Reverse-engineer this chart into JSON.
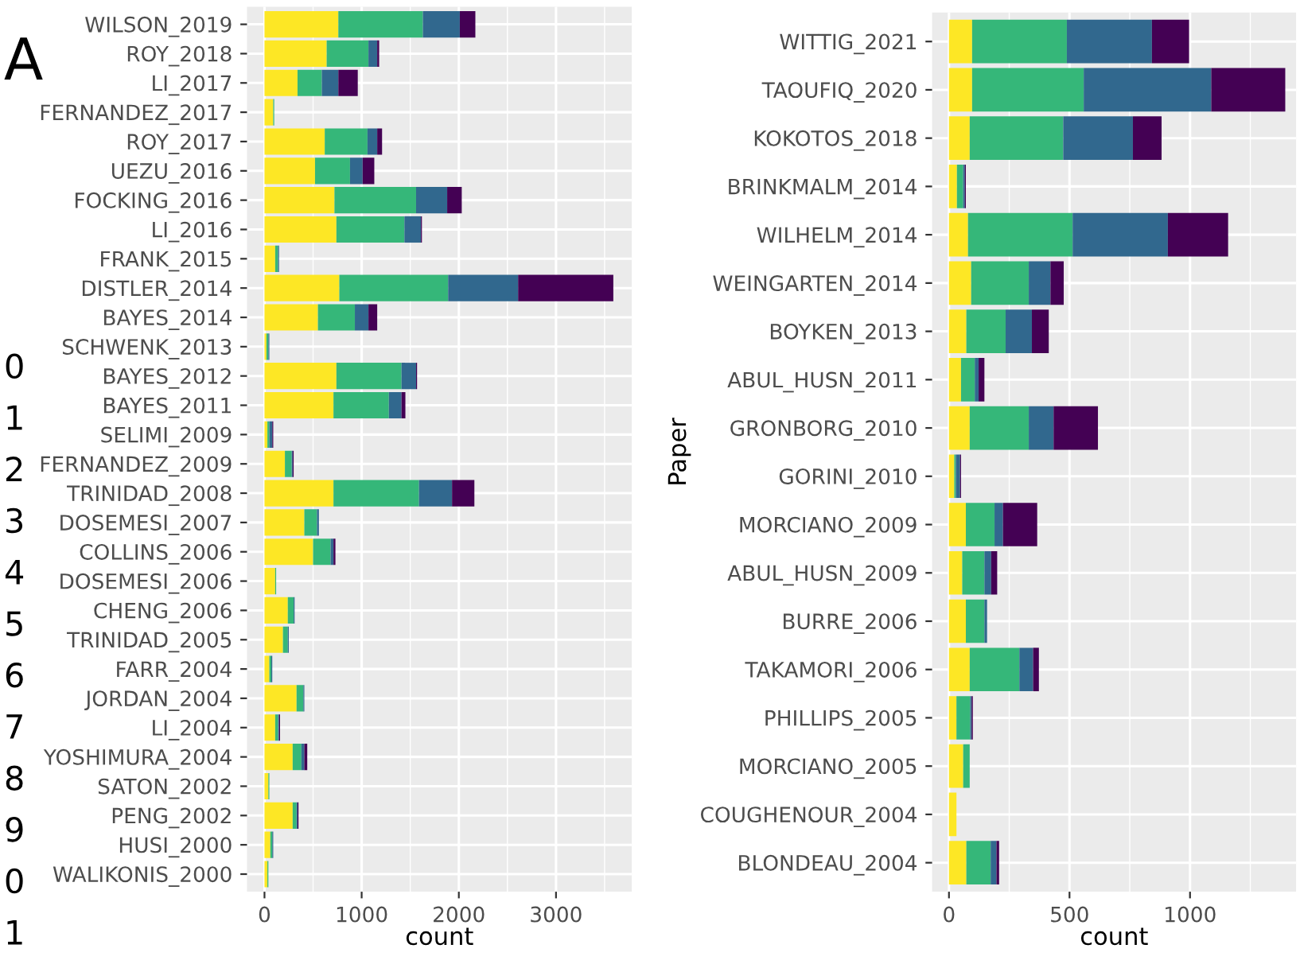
{
  "chart_data": [
    {
      "type": "bar",
      "orientation": "horizontal",
      "stacked": true,
      "xlabel": "count",
      "grid": true,
      "legend": false,
      "annotations": [
        "A",
        "0",
        "1",
        "2",
        "3",
        "4",
        "5",
        "6",
        "7",
        "8",
        "9",
        "0",
        "1"
      ],
      "categories": [
        "WILSON_2019",
        "ROY_2018",
        "LI_2017",
        "FERNANDEZ_2017",
        "ROY_2017",
        "UEZU_2016",
        "FOCKING_2016",
        "LI_2016",
        "FRANK_2015",
        "DISTLER_2014",
        "BAYES_2014",
        "SCHWENK_2013",
        "BAYES_2012",
        "BAYES_2011",
        "SELIMI_2009",
        "FERNANDEZ_2009",
        "TRINIDAD_2008",
        "DOSEMESI_2007",
        "COLLINS_2006",
        "DOSEMESI_2006",
        "CHENG_2006",
        "TRINIDAD_2005",
        "FARR_2004",
        "JORDAN_2004",
        "LI_2004",
        "YOSHIMURA_2004",
        "SATON_2002",
        "PENG_2002",
        "HUSI_2000",
        "WALIKONIS_2000"
      ],
      "xlim": [
        -180,
        3780
      ],
      "xticks": [
        0,
        1000,
        2000,
        3000
      ],
      "series": [
        {
          "color": "#fde725",
          "values": [
            760,
            640,
            340,
            90,
            620,
            520,
            720,
            740,
            110,
            770,
            550,
            20,
            740,
            710,
            30,
            210,
            710,
            410,
            500,
            110,
            240,
            190,
            50,
            330,
            110,
            290,
            40,
            290,
            60,
            30
          ]
        },
        {
          "color": "#35b779",
          "values": [
            870,
            430,
            250,
            10,
            440,
            360,
            840,
            700,
            30,
            1120,
            380,
            20,
            670,
            570,
            20,
            70,
            880,
            130,
            180,
            10,
            60,
            50,
            20,
            70,
            30,
            90,
            10,
            40,
            20,
            10
          ]
        },
        {
          "color": "#31688e",
          "values": [
            380,
            90,
            170,
            0,
            100,
            130,
            320,
            170,
            10,
            720,
            140,
            10,
            150,
            130,
            30,
            10,
            340,
            20,
            30,
            0,
            10,
            10,
            10,
            10,
            10,
            30,
            0,
            10,
            10,
            0
          ]
        },
        {
          "color": "#440154",
          "values": [
            160,
            20,
            200,
            0,
            50,
            120,
            150,
            10,
            0,
            980,
            90,
            0,
            10,
            40,
            10,
            10,
            230,
            0,
            20,
            0,
            0,
            0,
            0,
            0,
            10,
            30,
            0,
            10,
            0,
            0
          ]
        }
      ]
    },
    {
      "type": "bar",
      "orientation": "horizontal",
      "stacked": true,
      "xlabel": "count",
      "ylabel": "Paper",
      "grid": true,
      "legend": false,
      "categories": [
        "WITTIG_2021",
        "TAOUFIQ_2020",
        "KOKOTOS_2018",
        "BRINKMALM_2014",
        "WILHELM_2014",
        "WEINGARTEN_2014",
        "BOYKEN_2013",
        "ABUL_HUSN_2011",
        "GRONBORG_2010",
        "GORINI_2010",
        "MORCIANO_2009",
        "ABUL_HUSN_2009",
        "BURRE_2006",
        "TAKAMORI_2006",
        "PHILLIPS_2005",
        "MORCIANO_2005",
        "COUGHENOUR_2004",
        "BLONDEAU_2004"
      ],
      "xlim": [
        -70,
        1440
      ],
      "xticks": [
        0,
        500,
        1000
      ],
      "series": [
        {
          "color": "#fde725",
          "values": [
            96,
            96,
            86,
            33,
            79,
            92,
            72,
            50,
            86,
            22,
            70,
            55,
            70,
            86,
            31,
            59,
            31,
            72
          ]
        },
        {
          "color": "#35b779",
          "values": [
            393,
            463,
            388,
            26,
            434,
            239,
            163,
            57,
            245,
            7,
            119,
            92,
            77,
            206,
            57,
            27,
            0,
            101
          ]
        },
        {
          "color": "#31688e",
          "values": [
            353,
            529,
            289,
            7,
            395,
            90,
            109,
            16,
            103,
            17,
            35,
            28,
            11,
            57,
            6,
            0,
            0,
            24
          ]
        },
        {
          "color": "#440154",
          "values": [
            154,
            307,
            119,
            4,
            250,
            55,
            70,
            24,
            184,
            4,
            142,
            25,
            0,
            24,
            5,
            0,
            0,
            11
          ]
        }
      ]
    }
  ]
}
